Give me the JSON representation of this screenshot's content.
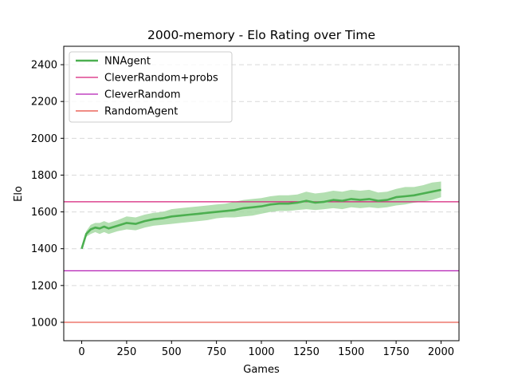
{
  "chart_data": {
    "type": "line",
    "title": "2000-memory - Elo Rating over Time",
    "xlabel": "Games",
    "ylabel": "Elo",
    "xlim": [
      -100,
      2100
    ],
    "ylim": [
      900,
      2500
    ],
    "xticks": [
      0,
      250,
      500,
      750,
      1000,
      1250,
      1500,
      1750,
      2000
    ],
    "yticks": [
      1000,
      1200,
      1400,
      1600,
      1800,
      2000,
      2200,
      2400
    ],
    "grid": "y-dashed",
    "legend_position": "upper-left",
    "series": [
      {
        "name": "NNAgent",
        "color": "#4caf50",
        "band_color": "#a6d9a3",
        "x": [
          0,
          25,
          50,
          75,
          100,
          125,
          150,
          200,
          250,
          300,
          350,
          400,
          450,
          500,
          550,
          600,
          650,
          700,
          750,
          800,
          850,
          900,
          950,
          1000,
          1050,
          1100,
          1150,
          1200,
          1250,
          1300,
          1350,
          1400,
          1450,
          1500,
          1550,
          1600,
          1650,
          1700,
          1750,
          1800,
          1850,
          1900,
          1950,
          2000
        ],
        "values": [
          1400,
          1480,
          1505,
          1515,
          1510,
          1520,
          1510,
          1525,
          1540,
          1535,
          1550,
          1560,
          1565,
          1575,
          1580,
          1585,
          1590,
          1595,
          1600,
          1605,
          1610,
          1620,
          1625,
          1630,
          1640,
          1645,
          1645,
          1650,
          1660,
          1650,
          1655,
          1665,
          1660,
          1670,
          1665,
          1670,
          1660,
          1665,
          1680,
          1685,
          1690,
          1700,
          1710,
          1720
        ],
        "lower": [
          1400,
          1465,
          1480,
          1490,
          1480,
          1490,
          1480,
          1495,
          1505,
          1500,
          1515,
          1525,
          1530,
          1535,
          1540,
          1545,
          1550,
          1555,
          1565,
          1570,
          1570,
          1575,
          1580,
          1590,
          1600,
          1605,
          1605,
          1610,
          1615,
          1610,
          1615,
          1620,
          1615,
          1625,
          1620,
          1625,
          1620,
          1625,
          1635,
          1640,
          1650,
          1655,
          1665,
          1680
        ],
        "upper": [
          1400,
          1495,
          1530,
          1540,
          1540,
          1550,
          1540,
          1555,
          1575,
          1570,
          1585,
          1595,
          1600,
          1615,
          1620,
          1625,
          1630,
          1635,
          1640,
          1645,
          1655,
          1665,
          1670,
          1675,
          1685,
          1690,
          1690,
          1695,
          1710,
          1700,
          1705,
          1715,
          1710,
          1720,
          1715,
          1720,
          1705,
          1710,
          1725,
          1735,
          1735,
          1745,
          1760,
          1765
        ]
      },
      {
        "name": "CleverRandom+probs",
        "color": "#d6217a",
        "constant": 1655
      },
      {
        "name": "CleverRandom",
        "color": "#b41fb4",
        "constant": 1280
      },
      {
        "name": "RandomAgent",
        "color": "#e8483a",
        "constant": 1000
      }
    ]
  }
}
